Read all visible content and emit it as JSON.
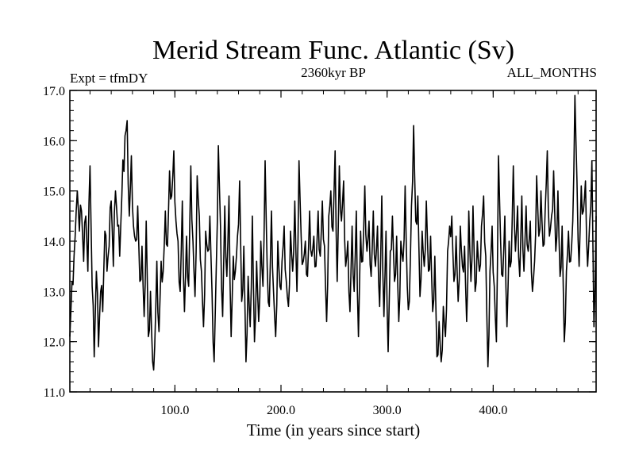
{
  "chart_data": {
    "type": "line",
    "title": "Merid Stream Func. Atlantic (Sv)",
    "subtitle_left": "Expt = tfmDY",
    "subtitle_center": "2360kyr BP",
    "subtitle_right": "ALL_MONTHS",
    "xlabel": "Time (in years since start)",
    "ylabel": "",
    "xlim": [
      1,
      497
    ],
    "ylim": [
      11.0,
      17.0
    ],
    "x_ticks": [
      100,
      200,
      300,
      400
    ],
    "x_tick_labels": [
      "100.0",
      "200.0",
      "300.0",
      "400.0"
    ],
    "y_ticks": [
      11,
      12,
      13,
      14,
      15,
      16,
      17
    ],
    "y_tick_labels": [
      "11.0",
      "12.0",
      "13.0",
      "14.0",
      "15.0",
      "16.0",
      "17.0"
    ],
    "grid": false,
    "color": "#000000",
    "anchors": [
      [
        1,
        12.1
      ],
      [
        3,
        13.2
      ],
      [
        5,
        13.7
      ],
      [
        7,
        14.6
      ],
      [
        8,
        15.0
      ],
      [
        10,
        14.2
      ],
      [
        12,
        14.6
      ],
      [
        14,
        13.6
      ],
      [
        16,
        14.5
      ],
      [
        18,
        13.4
      ],
      [
        20,
        15.5
      ],
      [
        22,
        13.1
      ],
      [
        24,
        11.7
      ],
      [
        26,
        13.4
      ],
      [
        28,
        11.9
      ],
      [
        30,
        13.0
      ],
      [
        32,
        12.6
      ],
      [
        34,
        14.2
      ],
      [
        36,
        13.4
      ],
      [
        38,
        13.9
      ],
      [
        40,
        14.8
      ],
      [
        42,
        13.5
      ],
      [
        44,
        15.0
      ],
      [
        46,
        14.3
      ],
      [
        48,
        13.7
      ],
      [
        50,
        14.9
      ],
      [
        53,
        16.1
      ],
      [
        55,
        16.4
      ],
      [
        57,
        14.5
      ],
      [
        59,
        15.7
      ],
      [
        61,
        14.3
      ],
      [
        63,
        14.0
      ],
      [
        65,
        14.7
      ],
      [
        67,
        13.2
      ],
      [
        69,
        13.9
      ],
      [
        71,
        12.5
      ],
      [
        73,
        14.4
      ],
      [
        75,
        12.1
      ],
      [
        77,
        13.0
      ],
      [
        79,
        11.6
      ],
      [
        81,
        11.9
      ],
      [
        83,
        13.6
      ],
      [
        85,
        12.2
      ],
      [
        87,
        13.6
      ],
      [
        89,
        13.4
      ],
      [
        91,
        14.6
      ],
      [
        93,
        13.9
      ],
      [
        95,
        15.4
      ],
      [
        97,
        14.9
      ],
      [
        99,
        15.8
      ],
      [
        101,
        14.4
      ],
      [
        103,
        14.0
      ],
      [
        105,
        13.0
      ],
      [
        107,
        14.8
      ],
      [
        109,
        12.6
      ],
      [
        111,
        14.1
      ],
      [
        113,
        13.1
      ],
      [
        115,
        15.5
      ],
      [
        117,
        14.0
      ],
      [
        119,
        12.9
      ],
      [
        121,
        15.3
      ],
      [
        123,
        14.5
      ],
      [
        125,
        13.4
      ],
      [
        127,
        12.3
      ],
      [
        129,
        14.2
      ],
      [
        131,
        13.8
      ],
      [
        133,
        14.5
      ],
      [
        135,
        13.0
      ],
      [
        137,
        11.6
      ],
      [
        139,
        13.5
      ],
      [
        141,
        15.9
      ],
      [
        143,
        14.3
      ],
      [
        145,
        12.5
      ],
      [
        147,
        14.7
      ],
      [
        149,
        13.3
      ],
      [
        151,
        14.9
      ],
      [
        153,
        12.1
      ],
      [
        155,
        13.7
      ],
      [
        157,
        13.4
      ],
      [
        159,
        14.1
      ],
      [
        161,
        15.2
      ],
      [
        163,
        12.8
      ],
      [
        165,
        13.9
      ],
      [
        167,
        11.6
      ],
      [
        169,
        13.3
      ],
      [
        171,
        12.3
      ],
      [
        173,
        14.5
      ],
      [
        175,
        12.0
      ],
      [
        177,
        13.6
      ],
      [
        179,
        12.4
      ],
      [
        181,
        14.0
      ],
      [
        183,
        13.1
      ],
      [
        185,
        15.6
      ],
      [
        187,
        13.5
      ],
      [
        189,
        12.7
      ],
      [
        191,
        14.6
      ],
      [
        193,
        13.0
      ],
      [
        195,
        12.1
      ],
      [
        197,
        14.0
      ],
      [
        199,
        13.1
      ],
      [
        201,
        13.6
      ],
      [
        203,
        14.3
      ],
      [
        205,
        13.2
      ],
      [
        207,
        12.7
      ],
      [
        209,
        14.2
      ],
      [
        211,
        13.4
      ],
      [
        213,
        14.8
      ],
      [
        215,
        13.0
      ],
      [
        217,
        15.6
      ],
      [
        219,
        14.1
      ],
      [
        221,
        13.6
      ],
      [
        223,
        14.0
      ],
      [
        225,
        13.3
      ],
      [
        227,
        14.6
      ],
      [
        229,
        13.7
      ],
      [
        231,
        14.1
      ],
      [
        233,
        13.5
      ],
      [
        235,
        14.6
      ],
      [
        237,
        13.7
      ],
      [
        239,
        14.8
      ],
      [
        241,
        13.9
      ],
      [
        243,
        12.4
      ],
      [
        245,
        14.5
      ],
      [
        247,
        15.0
      ],
      [
        249,
        14.2
      ],
      [
        251,
        15.8
      ],
      [
        253,
        13.2
      ],
      [
        255,
        15.5
      ],
      [
        257,
        14.4
      ],
      [
        259,
        15.2
      ],
      [
        261,
        13.5
      ],
      [
        263,
        14.0
      ],
      [
        265,
        12.6
      ],
      [
        267,
        14.3
      ],
      [
        269,
        13.0
      ],
      [
        271,
        14.6
      ],
      [
        273,
        12.1
      ],
      [
        275,
        14.2
      ],
      [
        277,
        13.6
      ],
      [
        279,
        15.1
      ],
      [
        281,
        13.8
      ],
      [
        283,
        14.4
      ],
      [
        285,
        13.3
      ],
      [
        287,
        14.6
      ],
      [
        289,
        13.5
      ],
      [
        291,
        14.3
      ],
      [
        293,
        12.7
      ],
      [
        295,
        14.9
      ],
      [
        297,
        12.5
      ],
      [
        299,
        14.2
      ],
      [
        301,
        11.8
      ],
      [
        303,
        13.8
      ],
      [
        305,
        14.5
      ],
      [
        307,
        13.2
      ],
      [
        309,
        14.1
      ],
      [
        311,
        12.4
      ],
      [
        313,
        14.0
      ],
      [
        315,
        13.6
      ],
      [
        317,
        15.1
      ],
      [
        319,
        13.1
      ],
      [
        321,
        12.8
      ],
      [
        323,
        14.7
      ],
      [
        325,
        16.3
      ],
      [
        327,
        14.4
      ],
      [
        329,
        14.9
      ],
      [
        331,
        12.9
      ],
      [
        333,
        14.2
      ],
      [
        335,
        13.5
      ],
      [
        337,
        14.8
      ],
      [
        339,
        13.4
      ],
      [
        341,
        14.1
      ],
      [
        343,
        12.6
      ],
      [
        345,
        13.7
      ],
      [
        347,
        11.7
      ],
      [
        349,
        12.4
      ],
      [
        351,
        11.6
      ],
      [
        353,
        12.7
      ],
      [
        355,
        12.1
      ],
      [
        357,
        13.8
      ],
      [
        359,
        14.3
      ],
      [
        361,
        14.5
      ],
      [
        363,
        13.2
      ],
      [
        365,
        14.1
      ],
      [
        367,
        12.8
      ],
      [
        369,
        14.3
      ],
      [
        371,
        13.5
      ],
      [
        373,
        13.9
      ],
      [
        375,
        12.4
      ],
      [
        377,
        14.6
      ],
      [
        379,
        13.2
      ],
      [
        381,
        14.7
      ],
      [
        383,
        13.0
      ],
      [
        385,
        14.0
      ],
      [
        387,
        13.4
      ],
      [
        389,
        14.3
      ],
      [
        391,
        14.9
      ],
      [
        393,
        13.7
      ],
      [
        395,
        11.5
      ],
      [
        397,
        13.4
      ],
      [
        399,
        14.3
      ],
      [
        401,
        13.1
      ],
      [
        403,
        12.0
      ],
      [
        405,
        15.7
      ],
      [
        407,
        14.0
      ],
      [
        409,
        13.3
      ],
      [
        411,
        14.5
      ],
      [
        413,
        12.3
      ],
      [
        415,
        14.0
      ],
      [
        417,
        13.6
      ],
      [
        419,
        15.5
      ],
      [
        421,
        13.8
      ],
      [
        423,
        14.7
      ],
      [
        425,
        13.3
      ],
      [
        427,
        14.9
      ],
      [
        429,
        13.4
      ],
      [
        431,
        14.7
      ],
      [
        433,
        13.8
      ],
      [
        435,
        14.4
      ],
      [
        437,
        13.0
      ],
      [
        439,
        13.6
      ],
      [
        441,
        15.3
      ],
      [
        443,
        14.1
      ],
      [
        445,
        15.0
      ],
      [
        447,
        13.9
      ],
      [
        449,
        14.6
      ],
      [
        451,
        15.8
      ],
      [
        453,
        14.1
      ],
      [
        455,
        14.5
      ],
      [
        457,
        15.4
      ],
      [
        459,
        13.8
      ],
      [
        461,
        15.0
      ],
      [
        463,
        13.3
      ],
      [
        465,
        14.3
      ],
      [
        467,
        12.0
      ],
      [
        469,
        13.4
      ],
      [
        471,
        14.2
      ],
      [
        473,
        13.6
      ],
      [
        475,
        14.4
      ],
      [
        477,
        16.9
      ],
      [
        479,
        15.2
      ],
      [
        481,
        13.5
      ],
      [
        483,
        15.1
      ],
      [
        485,
        14.6
      ],
      [
        487,
        15.2
      ],
      [
        489,
        13.5
      ],
      [
        491,
        14.4
      ],
      [
        493,
        15.6
      ],
      [
        495,
        12.3
      ],
      [
        497,
        14.5
      ]
    ],
    "noise": [
      0.45,
      -0.62,
      0.18,
      0.71,
      -0.34,
      -0.83,
      0.52,
      0.06,
      -0.47,
      0.88,
      -0.21,
      0.33,
      -0.76,
      0.64,
      -0.09,
      0.41,
      -0.55,
      0.27,
      0.79,
      -0.68,
      0.12,
      -0.38,
      0.58,
      -0.14,
      0.36,
      -0.81,
      0.69,
      -0.26,
      0.49,
      -0.57
    ]
  }
}
